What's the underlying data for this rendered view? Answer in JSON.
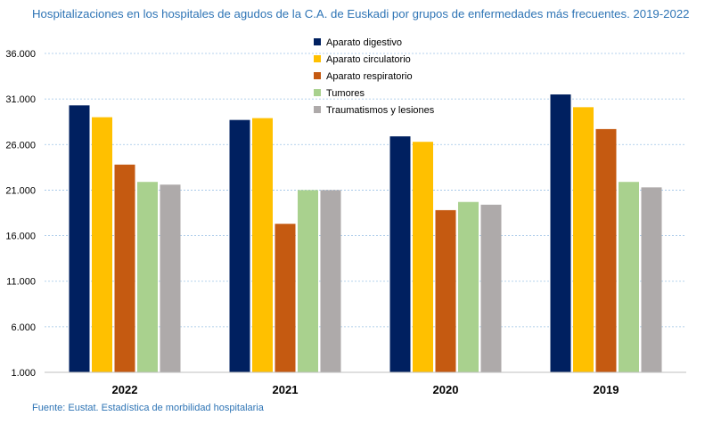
{
  "title": "Hospitalizaciones en los hospitales de agudos de la C.A. de Euskadi por grupos de enfermedades más frecuentes. 2019-2022",
  "source": "Fuente: Eustat. Estadística de morbilidad hospitalaria",
  "chart_data": {
    "type": "bar",
    "title": "Hospitalizaciones en los hospitales de agudos de la C.A. de Euskadi por grupos de enfermedades más frecuentes. 2019-2022",
    "xlabel": "",
    "ylabel": "",
    "categories": [
      "2022",
      "2021",
      "2020",
      "2019"
    ],
    "ylim": [
      1000,
      36000
    ],
    "yticks": [
      1000,
      6000,
      11000,
      16000,
      21000,
      26000,
      31000,
      36000
    ],
    "ytick_labels": [
      "1.000",
      "6.000",
      "11.000",
      "16.000",
      "21.000",
      "26.000",
      "31.000",
      "36.000"
    ],
    "grid": true,
    "legend_position": "top-center",
    "series": [
      {
        "name": "Aparato digestivo",
        "color": "#002060",
        "values": [
          30300,
          28700,
          26900,
          31500
        ]
      },
      {
        "name": "Aparato circulatorio",
        "color": "#ffc000",
        "values": [
          29000,
          28900,
          26300,
          30100
        ]
      },
      {
        "name": "Aparato respiratorio",
        "color": "#c55a11",
        "values": [
          23800,
          17300,
          18800,
          27700
        ]
      },
      {
        "name": "Tumores",
        "color": "#a9d18e",
        "values": [
          21900,
          21000,
          19700,
          21900
        ]
      },
      {
        "name": "Traumatismos y lesiones",
        "color": "#aeaaaa",
        "values": [
          21600,
          21000,
          19400,
          21300
        ]
      }
    ]
  }
}
